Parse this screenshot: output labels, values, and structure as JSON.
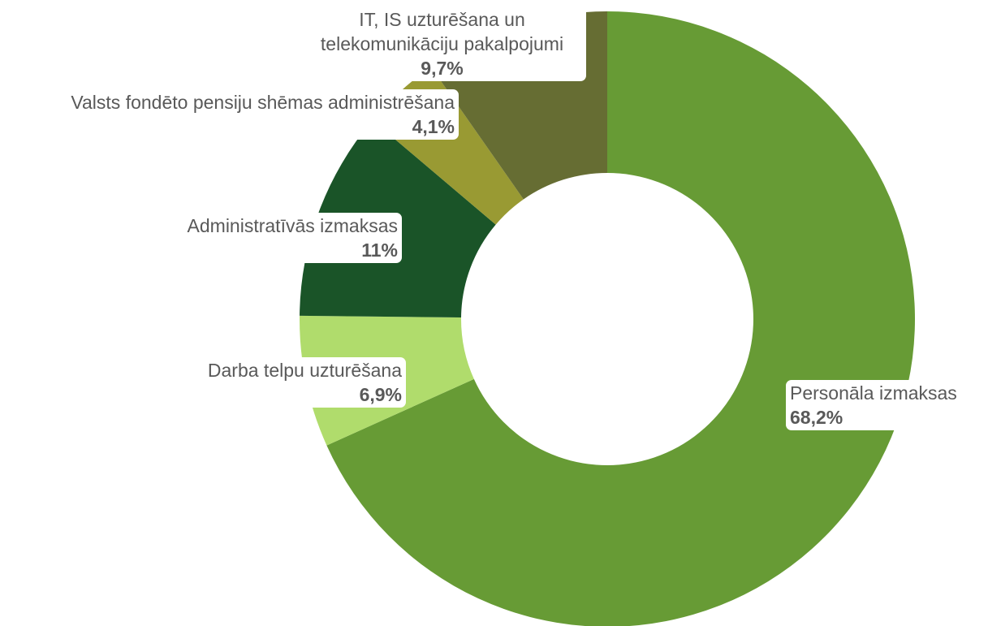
{
  "chart_data": {
    "type": "pie",
    "categories": [
      "Personāla izmaksas",
      "Darba telpu uzturēšana",
      "Administratīvās izmaksas",
      "Valsts fondēto pensiju shēmas administrēšana",
      "IT, IS uzturēšana un telekomunikāciju pakalpojumi"
    ],
    "values": [
      68.2,
      6.9,
      11,
      4.1,
      9.7
    ],
    "value_labels": [
      "68,2%",
      "6,9%",
      "11%",
      "4,1%",
      "9,7%"
    ],
    "colors": [
      "#679b35",
      "#b0dc6c",
      "#1a5428",
      "#999a33",
      "#666d33"
    ],
    "donut": true
  }
}
